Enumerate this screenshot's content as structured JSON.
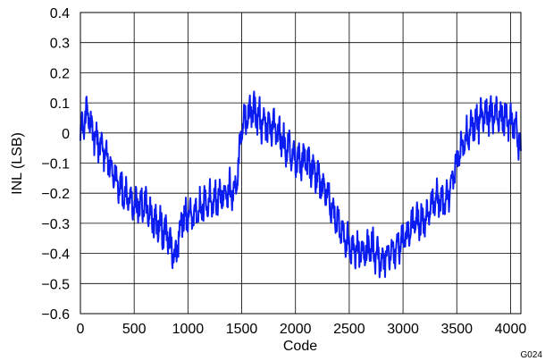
{
  "chart_data": {
    "type": "line",
    "title": "",
    "xlabel": "Code",
    "ylabel": "INL (LSB)",
    "xlim": [
      0,
      4096
    ],
    "ylim": [
      -0.6,
      0.4
    ],
    "x_ticks": [
      0,
      500,
      1000,
      1500,
      2000,
      2500,
      3000,
      3500,
      4000
    ],
    "x_tick_labels": [
      "0",
      "500",
      "1000",
      "1500",
      "2000",
      "2500",
      "3000",
      "3500",
      "4000"
    ],
    "y_ticks": [
      -0.6,
      -0.5,
      -0.4,
      -0.3,
      -0.2,
      -0.1,
      0,
      0.1,
      0.2,
      0.3,
      0.4
    ],
    "y_tick_labels": [
      "−0.6",
      "−0.5",
      "−0.4",
      "−0.3",
      "−0.2",
      "−0.1",
      "0",
      "0.1",
      "0.2",
      "0.3",
      "0.4"
    ],
    "grid": true,
    "legend": "none",
    "series": [
      {
        "color": "#0a1cf0",
        "x": [
          0,
          60,
          120,
          200,
          300,
          400,
          500,
          600,
          700,
          800,
          880,
          950,
          1050,
          1150,
          1250,
          1350,
          1450,
          1500,
          1600,
          1700,
          1800,
          1900,
          2000,
          2100,
          2200,
          2300,
          2400,
          2500,
          2600,
          2700,
          2800,
          2900,
          3000,
          3100,
          3200,
          3300,
          3400,
          3500,
          3550,
          3650,
          3750,
          3850,
          3950,
          4050,
          4095
        ],
        "y": [
          -0.01,
          0.07,
          0.0,
          -0.05,
          -0.13,
          -0.2,
          -0.24,
          -0.24,
          -0.3,
          -0.33,
          -0.42,
          -0.28,
          -0.27,
          -0.24,
          -0.22,
          -0.2,
          -0.18,
          0.02,
          0.08,
          0.03,
          0.02,
          -0.04,
          -0.08,
          -0.09,
          -0.14,
          -0.21,
          -0.3,
          -0.38,
          -0.4,
          -0.38,
          -0.42,
          -0.4,
          -0.36,
          -0.3,
          -0.29,
          -0.22,
          -0.23,
          -0.1,
          -0.04,
          0.02,
          0.06,
          0.06,
          0.05,
          0.02,
          -0.06
        ]
      }
    ]
  },
  "figure_id": "G024"
}
